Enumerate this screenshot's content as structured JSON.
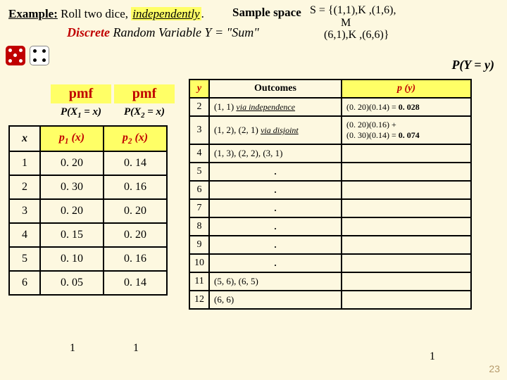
{
  "header": {
    "example_label": "Example:",
    "example_text": " Roll two dice, ",
    "independently": "independently",
    "period": ".",
    "sample_space": "Sample space",
    "s_eq_html": "S = {(1,1),K ,(1,6),<br>&nbsp;&nbsp;&nbsp;&nbsp;&nbsp;&nbsp;&nbsp;&nbsp;&nbsp;&nbsp;&nbsp;M<br>&nbsp;&nbsp;&nbsp;&nbsp;&nbsp;(6,1),K ,(6,6)}",
    "discrete": "Discrete",
    "rv_text": " Random Variable  Y = \"Sum\"",
    "pyy": "P(Y = y)"
  },
  "left": {
    "pmf_label": "pmf",
    "px1": "P(X",
    "px1_sub": "1",
    "px1_tail": " = x)",
    "px2": "P(X",
    "px2_sub": "2",
    "px2_tail": " = x)",
    "hdr_x": "x",
    "hdr_p1": "p",
    "hdr_p1_sub": "1",
    "hdr_p1_tail": " (x)",
    "hdr_p2": "p",
    "hdr_p2_sub": "2",
    "hdr_p2_tail": " (x)",
    "rows": [
      {
        "x": "1",
        "p1": "0. 20",
        "p2": "0. 14"
      },
      {
        "x": "2",
        "p1": "0. 30",
        "p2": "0. 16"
      },
      {
        "x": "3",
        "p1": "0. 20",
        "p2": "0. 20"
      },
      {
        "x": "4",
        "p1": "0. 15",
        "p2": "0. 20"
      },
      {
        "x": "5",
        "p1": "0. 10",
        "p2": "0. 16"
      },
      {
        "x": "6",
        "p1": "0. 05",
        "p2": "0. 14"
      }
    ],
    "sum1": "1",
    "sum2": "1"
  },
  "right": {
    "hdr_y": "y",
    "hdr_out": "Outcomes",
    "hdr_py": "p (y)",
    "rows": [
      {
        "y": "2",
        "out": "(1, 1)  <span class=\"via\">via independence</span>",
        "py": "(0. 20)(0.14) = <b>0. 028</b>"
      },
      {
        "y": "3",
        "out": "(1, 2), (2, 1) <span class=\"via\">via disjoint</span>",
        "py": "(0. 20)(0.16) +<br>(0. 30)(0.14) = <b>0. 074</b>"
      },
      {
        "y": "4",
        "out": "(1, 3), (2, 2), (3, 1)",
        "py": ""
      },
      {
        "y": "5",
        "out": ".",
        "py": "",
        "dot": true
      },
      {
        "y": "6",
        "out": ".",
        "py": "",
        "dot": true
      },
      {
        "y": "7",
        "out": ".",
        "py": "",
        "dot": true
      },
      {
        "y": "8",
        "out": ".",
        "py": "",
        "dot": true
      },
      {
        "y": "9",
        "out": ".",
        "py": "",
        "dot": true
      },
      {
        "y": "10",
        "out": ".",
        "py": "",
        "dot": true
      },
      {
        "y": "11",
        "out": "(5, 6), (6, 5)",
        "py": ""
      },
      {
        "y": "12",
        "out": "(6, 6)",
        "py": ""
      }
    ],
    "sum": "1"
  },
  "page": "23"
}
